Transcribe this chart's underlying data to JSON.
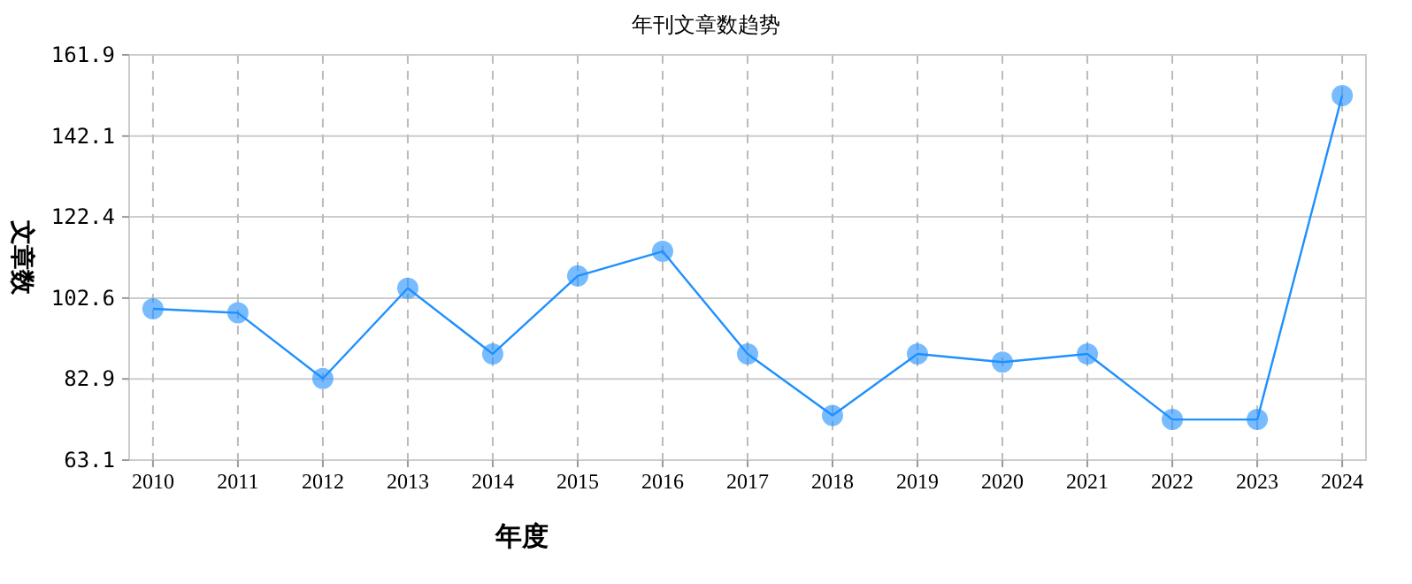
{
  "chart_data": {
    "type": "line",
    "title": "年刊文章数趋势",
    "xlabel": "年度",
    "ylabel": "文章数",
    "categories": [
      "2010",
      "2011",
      "2012",
      "2013",
      "2014",
      "2015",
      "2016",
      "2017",
      "2018",
      "2019",
      "2020",
      "2021",
      "2022",
      "2023",
      "2024"
    ],
    "series": [
      {
        "color": "#1e90ff",
        "values": [
          100,
          99,
          83,
          105,
          89,
          108,
          114,
          89,
          74,
          89,
          87,
          89,
          73,
          73,
          152
        ]
      }
    ],
    "ylim": [
      63.1,
      161.9
    ],
    "yticks": [
      63.1,
      82.9,
      102.6,
      122.4,
      142.1,
      161.9
    ],
    "grid": true,
    "marker": "circle",
    "line_style": "solid"
  }
}
